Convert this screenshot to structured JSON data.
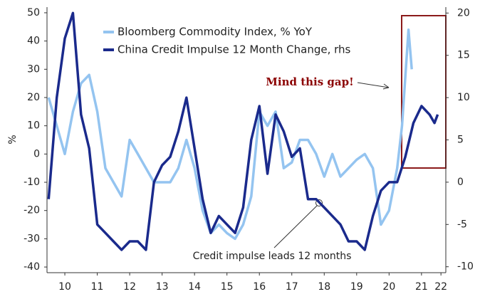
{
  "chart_data": {
    "type": "line",
    "series": [
      {
        "name": "Bloomberg Commodity Index, % YoY",
        "color": "#94c4f0",
        "axis": "y",
        "x": [
          2010.0,
          2010.25,
          2010.5,
          2010.75,
          2011.0,
          2011.25,
          2011.5,
          2011.75,
          2012.0,
          2012.25,
          2012.5,
          2012.75,
          2013.0,
          2013.25,
          2013.5,
          2013.75,
          2014.0,
          2014.25,
          2014.5,
          2014.75,
          2015.0,
          2015.25,
          2015.5,
          2015.75,
          2016.0,
          2016.25,
          2016.5,
          2016.75,
          2017.0,
          2017.25,
          2017.5,
          2017.75,
          2018.0,
          2018.25,
          2018.5,
          2018.75,
          2019.0,
          2019.25,
          2019.5,
          2019.75,
          2020.0,
          2020.25,
          2020.5,
          2020.75,
          2020.9,
          2021.1,
          2021.2
        ],
        "values": [
          20,
          10,
          0,
          15,
          25,
          28,
          15,
          -5,
          -10,
          -15,
          5,
          0,
          -5,
          -10,
          -10,
          -10,
          -5,
          5,
          -5,
          -20,
          -28,
          -25,
          -28,
          -30,
          -25,
          -15,
          15,
          10,
          15,
          -5,
          -3,
          5,
          5,
          0,
          -8,
          0,
          -8,
          -5,
          -2,
          0,
          -5,
          -25,
          -20,
          -5,
          10,
          44,
          30
        ]
      },
      {
        "name": "China Credit Impulse 12 Month Change, rhs",
        "color": "#1a2a8c",
        "axis": "y2",
        "x": [
          2010.0,
          2010.25,
          2010.5,
          2010.75,
          2011.0,
          2011.25,
          2011.5,
          2011.75,
          2012.0,
          2012.25,
          2012.5,
          2012.75,
          2013.0,
          2013.25,
          2013.5,
          2013.75,
          2014.0,
          2014.25,
          2014.5,
          2014.75,
          2015.0,
          2015.25,
          2015.5,
          2015.75,
          2016.0,
          2016.25,
          2016.5,
          2016.75,
          2017.0,
          2017.25,
          2017.5,
          2017.75,
          2018.0,
          2018.25,
          2018.5,
          2018.75,
          2019.0,
          2019.25,
          2019.5,
          2019.75,
          2020.0,
          2020.25,
          2020.5,
          2020.75,
          2021.0,
          2021.25,
          2021.5,
          2021.75,
          2021.9,
          2022.0
        ],
        "values": [
          -2,
          10,
          17,
          20,
          8,
          4,
          -5,
          -6,
          -7,
          -8,
          -7,
          -7,
          -8,
          0,
          2,
          3,
          6,
          10,
          4,
          -2,
          -6,
          -4,
          -5,
          -6,
          -3,
          5,
          9,
          1,
          8,
          6,
          3,
          4,
          -2,
          -2,
          -3,
          -4,
          -5,
          -7,
          -7,
          -8,
          -4,
          -1,
          0,
          0,
          3,
          7,
          9,
          8,
          7,
          8
        ]
      }
    ],
    "y_label": "%",
    "xlim": [
      2009.95,
      2022.25
    ],
    "xticks": [
      {
        "value": 2010.5,
        "label": "10"
      },
      {
        "value": 2011.5,
        "label": "11"
      },
      {
        "value": 2012.5,
        "label": "12"
      },
      {
        "value": 2013.5,
        "label": "13"
      },
      {
        "value": 2014.5,
        "label": "14"
      },
      {
        "value": 2015.5,
        "label": "15"
      },
      {
        "value": 2016.5,
        "label": "16"
      },
      {
        "value": 2017.5,
        "label": "17"
      },
      {
        "value": 2018.5,
        "label": "18"
      },
      {
        "value": 2019.5,
        "label": "19"
      },
      {
        "value": 2020.5,
        "label": "20"
      },
      {
        "value": 2021.5,
        "label": "21"
      },
      {
        "value": 2022.1,
        "label": "22"
      }
    ],
    "ylim": [
      -42,
      52
    ],
    "yticks": [
      -40,
      -30,
      -20,
      -10,
      0,
      10,
      20,
      30,
      40,
      50
    ],
    "y2lim": [
      -10.7,
      20.7
    ],
    "y2ticks": [
      -10,
      -5,
      0,
      5,
      10,
      15,
      20
    ],
    "annotations": [
      "Mind this gap!",
      "Credit impulse leads 12 months"
    ]
  }
}
